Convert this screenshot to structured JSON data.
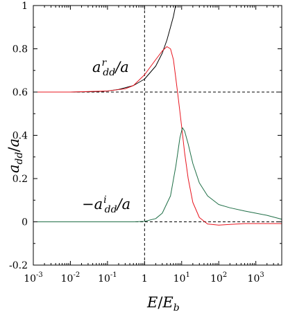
{
  "chart_data": {
    "type": "line",
    "xlabel": "E/E_b",
    "ylabel": "a_dd/a",
    "x_scale": "log",
    "xlim": [
      0.001,
      5000
    ],
    "ylim": [
      -0.2,
      1
    ],
    "x_ticks": [
      {
        "value": 0.001,
        "base": "10",
        "exp": "-3"
      },
      {
        "value": 0.01,
        "base": "10",
        "exp": "-2"
      },
      {
        "value": 0.1,
        "base": "10",
        "exp": "-1"
      },
      {
        "value": 1,
        "base": "1",
        "exp": ""
      },
      {
        "value": 10,
        "base": "10",
        "exp": "1"
      },
      {
        "value": 100,
        "base": "10",
        "exp": "2"
      },
      {
        "value": 1000,
        "base": "10",
        "exp": "3"
      }
    ],
    "y_ticks": [
      {
        "value": -0.2,
        "label": "-0.2"
      },
      {
        "value": 0,
        "label": "0"
      },
      {
        "value": 0.2,
        "label": "0.2"
      },
      {
        "value": 0.4,
        "label": "0.4"
      },
      {
        "value": 0.6,
        "label": "0.6"
      },
      {
        "value": 0.8,
        "label": "0.8"
      },
      {
        "value": 1,
        "label": "1"
      }
    ],
    "reference_lines": [
      {
        "orientation": "horizontal",
        "y": 0.6,
        "style": "dashed",
        "color": "#000000"
      },
      {
        "orientation": "horizontal",
        "y": 0,
        "style": "dashed",
        "color": "#000000"
      },
      {
        "orientation": "vertical",
        "x": 1,
        "style": "dashed",
        "color": "#000000"
      }
    ],
    "annotations": [
      {
        "text": "a^r_dd/a",
        "near_x": 0.2,
        "near_y": 0.715
      },
      {
        "text": "-a^i_dd/a",
        "near_x": 0.15,
        "near_y": 0.1
      }
    ],
    "series": [
      {
        "color": "#000000",
        "points": [
          [
            0.001,
            0.6
          ],
          [
            0.01,
            0.6
          ],
          [
            0.05,
            0.602
          ],
          [
            0.1,
            0.605
          ],
          [
            0.2,
            0.612
          ],
          [
            0.5,
            0.63
          ],
          [
            1,
            0.66
          ],
          [
            2,
            0.72
          ],
          [
            3,
            0.78
          ],
          [
            4,
            0.84
          ],
          [
            5,
            0.9
          ],
          [
            6,
            0.95
          ],
          [
            6.5,
            0.98
          ],
          [
            6.9,
            1.0
          ]
        ]
      },
      {
        "color": "#e8141e",
        "points": [
          [
            0.001,
            0.6
          ],
          [
            0.01,
            0.6
          ],
          [
            0.1,
            0.605
          ],
          [
            0.3,
            0.615
          ],
          [
            0.5,
            0.63
          ],
          [
            1,
            0.68
          ],
          [
            2,
            0.75
          ],
          [
            3,
            0.79
          ],
          [
            4,
            0.81
          ],
          [
            5,
            0.8
          ],
          [
            6,
            0.75
          ],
          [
            7,
            0.66
          ],
          [
            8,
            0.58
          ],
          [
            10,
            0.44
          ],
          [
            12,
            0.32
          ],
          [
            15,
            0.2
          ],
          [
            20,
            0.09
          ],
          [
            30,
            0.02
          ],
          [
            50,
            -0.01
          ],
          [
            100,
            -0.015
          ],
          [
            200,
            -0.012
          ],
          [
            500,
            -0.008
          ],
          [
            1000,
            -0.008
          ],
          [
            5000,
            -0.008
          ]
        ]
      },
      {
        "color": "#1e6e46",
        "points": [
          [
            0.001,
            0
          ],
          [
            0.1,
            0
          ],
          [
            0.5,
            0
          ],
          [
            1,
            0.002
          ],
          [
            2,
            0.015
          ],
          [
            3,
            0.04
          ],
          [
            5,
            0.12
          ],
          [
            7,
            0.26
          ],
          [
            9,
            0.39
          ],
          [
            10.5,
            0.435
          ],
          [
            12,
            0.42
          ],
          [
            15,
            0.36
          ],
          [
            20,
            0.27
          ],
          [
            30,
            0.18
          ],
          [
            50,
            0.12
          ],
          [
            100,
            0.08
          ],
          [
            200,
            0.065
          ],
          [
            500,
            0.05
          ],
          [
            1000,
            0.04
          ],
          [
            2000,
            0.03
          ],
          [
            5000,
            0.012
          ]
        ]
      }
    ]
  }
}
